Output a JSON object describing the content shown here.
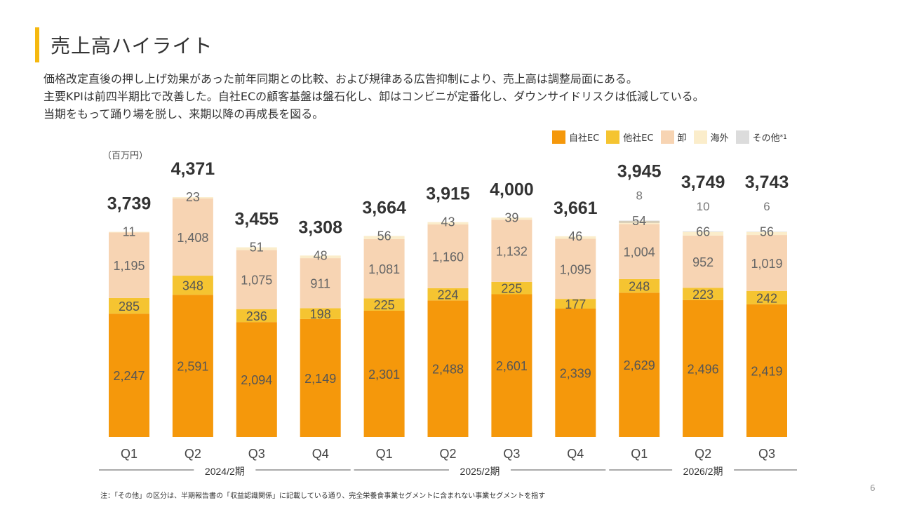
{
  "title": "売上高ハイライト",
  "accent_color": "#F5B80F",
  "description": [
    "価格改定直後の押し上げ効果があった前年同期との比較、および規律ある広告抑制により、売上高は調整局面にある。",
    "主要KPIは前四半期比で改善した。自社ECの顧客基盤は盤石化し、卸はコンビニが定番化し、ダウンサイドリスクは低減している。",
    "当期をもって踊り場を脱し、来期以降の再成長を図る。"
  ],
  "legend": [
    {
      "label": "自社EC",
      "sup": "",
      "color": "#F5980B"
    },
    {
      "label": "他社EC",
      "sup": "",
      "color": "#F5C431"
    },
    {
      "label": "卸",
      "sup": "",
      "color": "#F7D4B3"
    },
    {
      "label": "海外",
      "sup": "",
      "color": "#FBEDCB"
    },
    {
      "label": "その他",
      "sup": "*1",
      "color": "#DCDCDC"
    }
  ],
  "unit_label": "（百万円）",
  "footnote": "注：「その他」の区分は、半期報告書の「収益認識関係」に記載している通り、完全栄養食事業セグメントに含まれない事業セグメントを指す",
  "page_number": "6",
  "chart_data": {
    "type": "stacked-bar",
    "categories": [
      "Q1",
      "Q2",
      "Q3",
      "Q4",
      "Q1",
      "Q2",
      "Q3",
      "Q4",
      "Q1",
      "Q2",
      "Q3"
    ],
    "groups": [
      {
        "label": "2024/2期",
        "start": 0,
        "end": 3
      },
      {
        "label": "2025/2期",
        "start": 4,
        "end": 7
      },
      {
        "label": "2026/2期",
        "start": 8,
        "end": 10
      }
    ],
    "series": [
      {
        "name": "自社EC",
        "color": "#F5980B",
        "values": [
          2247,
          2591,
          2094,
          2149,
          2301,
          2488,
          2601,
          2339,
          2629,
          2496,
          2419
        ]
      },
      {
        "name": "他社EC",
        "color": "#F5C431",
        "values": [
          285,
          348,
          236,
          198,
          225,
          224,
          225,
          177,
          248,
          223,
          242
        ]
      },
      {
        "name": "卸",
        "color": "#F7D4B3",
        "values": [
          1195,
          1408,
          1075,
          911,
          1081,
          1160,
          1132,
          1095,
          1004,
          952,
          1019
        ]
      },
      {
        "name": "海外",
        "color": "#FBEDCB",
        "values": [
          11,
          23,
          51,
          48,
          56,
          43,
          39,
          46,
          54,
          66,
          56
        ]
      },
      {
        "name": "その他",
        "color": "#DCDCDC",
        "values": [
          0,
          0,
          0,
          0,
          0,
          0,
          0,
          0,
          8,
          10,
          6
        ]
      }
    ],
    "totals": [
      "3,739",
      "4,371",
      "3,455",
      "3,308",
      "3,664",
      "3,915",
      "4,000",
      "3,661",
      "3,945",
      "3,749",
      "3,743"
    ],
    "segment_labels": [
      [
        "2,247",
        "285",
        "1,195",
        "11",
        ""
      ],
      [
        "2,591",
        "348",
        "1,408",
        "23",
        ""
      ],
      [
        "2,094",
        "236",
        "1,075",
        "51",
        ""
      ],
      [
        "2,149",
        "198",
        "911",
        "48",
        ""
      ],
      [
        "2,301",
        "225",
        "1,081",
        "56",
        ""
      ],
      [
        "2,488",
        "224",
        "1,160",
        "43",
        ""
      ],
      [
        "2,601",
        "225",
        "1,132",
        "39",
        ""
      ],
      [
        "2,339",
        "177",
        "1,095",
        "46",
        ""
      ],
      [
        "2,629",
        "248",
        "1,004",
        "54",
        "8"
      ],
      [
        "2,496",
        "223",
        "952",
        "66",
        "10"
      ],
      [
        "2,419",
        "242",
        "1,019",
        "56",
        "6"
      ]
    ],
    "ylim": [
      0,
      4371
    ]
  }
}
